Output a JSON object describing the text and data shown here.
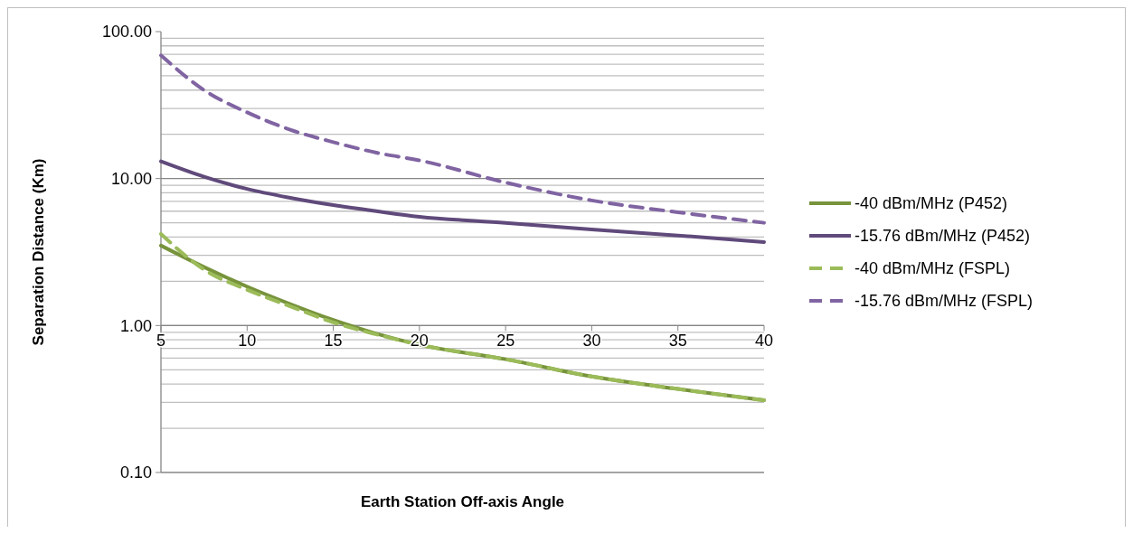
{
  "chart_data": {
    "type": "line",
    "xlabel": "Earth Station Off-axis Angle",
    "ylabel": "Separation Distance (Km)",
    "x": [
      5,
      7.5,
      10,
      12.5,
      15,
      17.5,
      20,
      25,
      30,
      35,
      40
    ],
    "log": "y",
    "grid": "y",
    "legend": "right",
    "xlim": [
      5,
      40
    ],
    "xticks": [
      5,
      10,
      15,
      20,
      25,
      30,
      35,
      40
    ],
    "ylim": [
      0.1,
      100
    ],
    "yticks": [
      {
        "value": 0.1,
        "label": "0.10"
      },
      {
        "value": 1,
        "label": "1.00"
      },
      {
        "value": 10,
        "label": "10.00"
      },
      {
        "value": 100,
        "label": "100.00"
      }
    ],
    "series": [
      {
        "name": "-40 dBm/MHz (P452)",
        "color": "#77933c",
        "line_style": "solid",
        "values": [
          3.5,
          2.5,
          1.84,
          1.4,
          1.09,
          0.88,
          0.74,
          0.59,
          0.45,
          0.37,
          0.31
        ]
      },
      {
        "name": "-15.76 dBm/MHz (P452)",
        "color": "#604a7b",
        "line_style": "solid",
        "values": [
          13.1,
          10.3,
          8.5,
          7.4,
          6.6,
          6,
          5.5,
          5,
          4.5,
          4.1,
          3.7
        ]
      },
      {
        "name": "-40 dBm/MHz (FSPL)",
        "color": "#9bbb59",
        "line_style": "dashed",
        "values": [
          4.2,
          2.4,
          1.75,
          1.35,
          1.05,
          0.87,
          0.74,
          0.59,
          0.45,
          0.37,
          0.31
        ]
      },
      {
        "name": "-15.76 dBm/MHz (FSPL)",
        "color": "#8064a2",
        "line_style": "dashed",
        "values": [
          68.9,
          40,
          28.2,
          21.5,
          17.7,
          15,
          13.3,
          9.4,
          7.1,
          5.9,
          5
        ]
      }
    ]
  }
}
